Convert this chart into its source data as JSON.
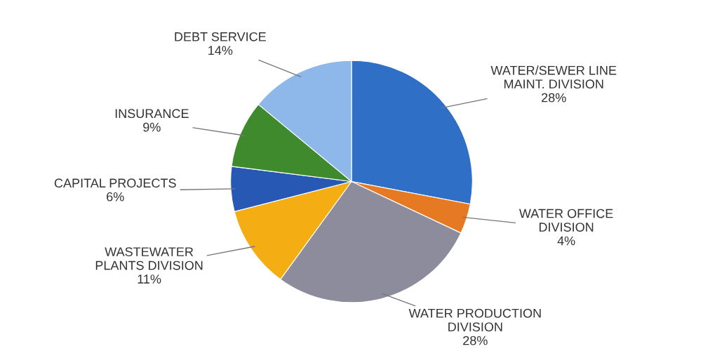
{
  "chart_data": {
    "type": "pie",
    "categories": [
      "WATER/SEWER LINE\nMAINT. DIVISION",
      "WATER OFFICE\nDIVISION",
      "WATER PRODUCTION\nDIVISION",
      "WASTEWATER\nPLANTS DIVISION",
      "CAPITAL PROJECTS",
      "INSURANCE",
      "DEBT SERVICE"
    ],
    "values": [
      28,
      4,
      28,
      11,
      6,
      9,
      14
    ],
    "value_labels": [
      "28%",
      "4%",
      "28%",
      "11%",
      "6%",
      "9%",
      "14%"
    ],
    "colors": [
      "#2f6fc6",
      "#e67a22",
      "#8c8c9c",
      "#f4ae14",
      "#2658b4",
      "#3f8a2c",
      "#8fb8ea"
    ],
    "legend": false
  }
}
